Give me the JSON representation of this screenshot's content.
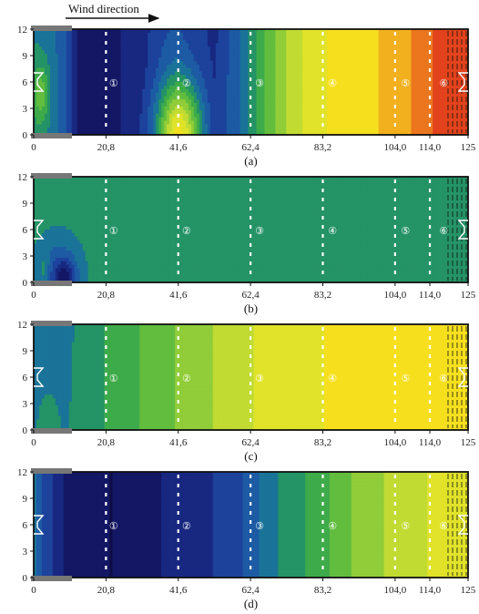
{
  "figure": {
    "wind_label": "Wind direction"
  },
  "chart_data": [
    {
      "type": "heatmap",
      "caption": "(a)",
      "x_ticks": [
        "0",
        "20,8",
        "41,6",
        "62,4",
        "83,2",
        "104,0",
        "114,0",
        "125"
      ],
      "y_ticks": [
        "0",
        "3",
        "6",
        "9",
        "12"
      ],
      "xlim": [
        0,
        125
      ],
      "ylim": [
        0,
        12
      ],
      "zone_labels": [
        "①",
        "②",
        "③",
        "④",
        "⑤",
        "⑥"
      ],
      "zone_positions": [
        23,
        44,
        65,
        86,
        107,
        118
      ],
      "divider_x": [
        20.8,
        41.6,
        62.4,
        83.2,
        104.0,
        114.0
      ],
      "x_profile": [
        [
          0,
          0.34
        ],
        [
          4,
          0.32
        ],
        [
          8,
          0.26
        ],
        [
          12,
          0.1
        ],
        [
          16,
          0.05
        ],
        [
          20,
          0.04
        ],
        [
          26,
          0.1
        ],
        [
          32,
          0.14
        ],
        [
          37,
          0.2
        ],
        [
          41,
          0.22
        ],
        [
          46,
          0.18
        ],
        [
          52,
          0.14
        ],
        [
          56,
          0.22
        ],
        [
          60,
          0.3
        ],
        [
          64,
          0.4
        ],
        [
          68,
          0.5
        ],
        [
          72,
          0.58
        ],
        [
          76,
          0.64
        ],
        [
          80,
          0.7
        ],
        [
          85,
          0.72
        ],
        [
          90,
          0.74
        ],
        [
          96,
          0.76
        ],
        [
          102,
          0.8
        ],
        [
          108,
          0.84
        ],
        [
          112,
          0.88
        ],
        [
          116,
          0.92
        ],
        [
          120,
          0.95
        ],
        [
          125,
          0.96
        ]
      ],
      "hotspots": [
        {
          "cx": 42,
          "cy": 0,
          "rx": 6.5,
          "ry": 6,
          "dv": 0.52
        },
        {
          "cx": 2,
          "cy": 4.5,
          "rx": 2.5,
          "ry": 3.5,
          "dv": 0.18
        }
      ]
    },
    {
      "type": "heatmap",
      "caption": "(b)",
      "x_ticks": [
        "0",
        "20,8",
        "41,6",
        "62,4",
        "83,2",
        "104,0",
        "114,0",
        "125"
      ],
      "y_ticks": [
        "0",
        "3",
        "6",
        "9",
        "12"
      ],
      "xlim": [
        0,
        125
      ],
      "ylim": [
        0,
        12
      ],
      "zone_labels": [
        "①",
        "②",
        "③",
        "④",
        "⑤",
        "⑥"
      ],
      "zone_positions": [
        23,
        44,
        65,
        86,
        107,
        118
      ],
      "divider_x": [
        20.8,
        41.6,
        62.4,
        83.2,
        104.0,
        114.0
      ],
      "x_profile": [
        [
          0,
          0.39
        ],
        [
          125,
          0.39
        ]
      ],
      "hotspots": [
        {
          "cx": 6,
          "cy": 0,
          "rx": 14,
          "ry": 9,
          "dv": -0.05
        },
        {
          "cx": 7,
          "cy": 0,
          "rx": 6,
          "ry": 4.5,
          "dv": -0.13
        },
        {
          "cx": 9,
          "cy": 0.5,
          "rx": 3,
          "ry": 2.2,
          "dv": -0.18
        },
        {
          "cx": 3,
          "cy": 1,
          "rx": 1.5,
          "ry": 2.5,
          "dv": 0.08
        }
      ]
    },
    {
      "type": "heatmap",
      "caption": "(c)",
      "x_ticks": [
        "0",
        "20,8",
        "41,6",
        "62,4",
        "83,2",
        "104,0",
        "114,0",
        "125"
      ],
      "y_ticks": [
        "0",
        "3",
        "6",
        "9",
        "12"
      ],
      "xlim": [
        0,
        125
      ],
      "ylim": [
        0,
        12
      ],
      "zone_labels": [
        "①",
        "②",
        "③",
        "④",
        "⑤",
        "⑥"
      ],
      "zone_positions": [
        23,
        44,
        65,
        86,
        107,
        118
      ],
      "divider_x": [
        20.8,
        41.6,
        62.4,
        83.2,
        104.0,
        114.0
      ],
      "x_profile": [
        [
          0,
          0.3
        ],
        [
          8,
          0.31
        ],
        [
          14,
          0.37
        ],
        [
          24,
          0.43
        ],
        [
          34,
          0.49
        ],
        [
          44,
          0.55
        ],
        [
          54,
          0.61
        ],
        [
          64,
          0.66
        ],
        [
          74,
          0.7
        ],
        [
          84,
          0.72
        ],
        [
          100,
          0.74
        ],
        [
          125,
          0.76
        ]
      ],
      "hotspots": [
        {
          "cx": 4,
          "cy": 0,
          "rx": 5,
          "ry": 6,
          "dv": 0.06
        }
      ]
    },
    {
      "type": "heatmap",
      "caption": "(d)",
      "x_ticks": [
        "0",
        "20,8",
        "41,6",
        "62,4",
        "83,2",
        "104,0",
        "114,0",
        "125"
      ],
      "y_ticks": [
        "0",
        "3",
        "6",
        "9",
        "12"
      ],
      "xlim": [
        0,
        125
      ],
      "ylim": [
        0,
        12
      ],
      "zone_labels": [
        "①",
        "②",
        "③",
        "④",
        "⑤",
        "⑥"
      ],
      "zone_positions": [
        23,
        44,
        65,
        86,
        107,
        118
      ],
      "divider_x": [
        20.8,
        41.6,
        62.4,
        83.2,
        104.0,
        114.0
      ],
      "x_profile": [
        [
          0,
          0.3
        ],
        [
          3,
          0.2
        ],
        [
          8,
          0.1
        ],
        [
          14,
          0.05
        ],
        [
          22,
          0.03
        ],
        [
          30,
          0.06
        ],
        [
          38,
          0.1
        ],
        [
          44,
          0.12
        ],
        [
          52,
          0.16
        ],
        [
          58,
          0.2
        ],
        [
          62,
          0.24
        ],
        [
          66,
          0.3
        ],
        [
          72,
          0.36
        ],
        [
          80,
          0.42
        ],
        [
          90,
          0.52
        ],
        [
          98,
          0.58
        ],
        [
          106,
          0.62
        ],
        [
          114,
          0.66
        ],
        [
          120,
          0.68
        ],
        [
          125,
          0.7
        ]
      ],
      "hotspots": []
    }
  ]
}
